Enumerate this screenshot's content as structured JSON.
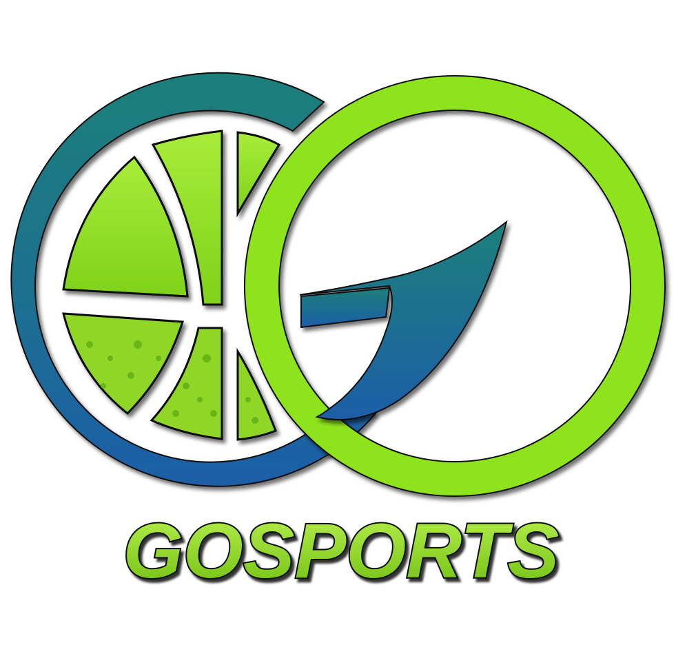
{
  "brand": {
    "name": "GOSPORTS",
    "colors": {
      "lime_green": "#8fe31c",
      "lime_light": "#b9f04e",
      "lime_dark": "#6fbf12",
      "teal": "#1e7f7a",
      "blue": "#1f5ea8",
      "outline": "#111111",
      "background": "#ffffff"
    }
  },
  "icons": {
    "basketball": "basketball-icon",
    "left_ring": "teal-c-ring-icon",
    "right_ring": "lime-g-ring-icon",
    "g_arrow": "g-swoosh-icon"
  }
}
